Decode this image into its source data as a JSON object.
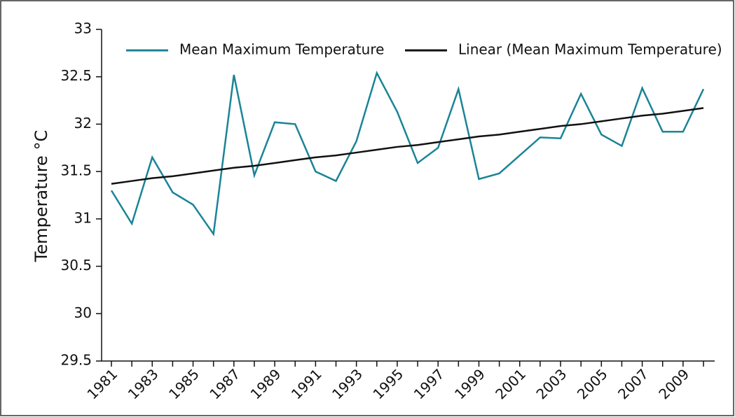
{
  "chart_data": {
    "type": "line",
    "y_label": "Temperature  °C",
    "categories": [
      "1981",
      null,
      "1983",
      null,
      "1985",
      null,
      "1987",
      null,
      "1989",
      null,
      "1991",
      null,
      "1993",
      null,
      "1995",
      null,
      "1997",
      null,
      "1999",
      null,
      "2001",
      null,
      "2003",
      null,
      "2005",
      null,
      "2007",
      null,
      "2009",
      null
    ],
    "series": [
      {
        "name": "Mean Maximum Temperature",
        "color": "#1a8496",
        "values": [
          31.3,
          30.95,
          31.65,
          31.28,
          31.15,
          30.84,
          32.52,
          31.46,
          32.02,
          32.0,
          31.5,
          31.4,
          31.82,
          32.54,
          32.13,
          31.59,
          31.75,
          32.37,
          31.42,
          31.48,
          31.67,
          31.86,
          31.85,
          32.32,
          31.89,
          31.77,
          32.38,
          31.92,
          31.92,
          32.37
        ]
      },
      {
        "name": "Linear (Mean Maximum Temperature)",
        "color": "#111111",
        "values": [
          31.37,
          31.4,
          31.43,
          31.45,
          31.48,
          31.51,
          31.54,
          31.56,
          31.59,
          31.62,
          31.65,
          31.67,
          31.7,
          31.73,
          31.76,
          31.78,
          31.81,
          31.84,
          31.87,
          31.89,
          31.92,
          31.95,
          31.98,
          32.0,
          32.03,
          32.06,
          32.09,
          32.11,
          32.14,
          32.17
        ]
      }
    ],
    "ylim": [
      29.5,
      33
    ],
    "yticks": [
      29.5,
      30,
      30.5,
      31,
      31.5,
      32,
      32.5,
      33
    ],
    "grid": false
  }
}
